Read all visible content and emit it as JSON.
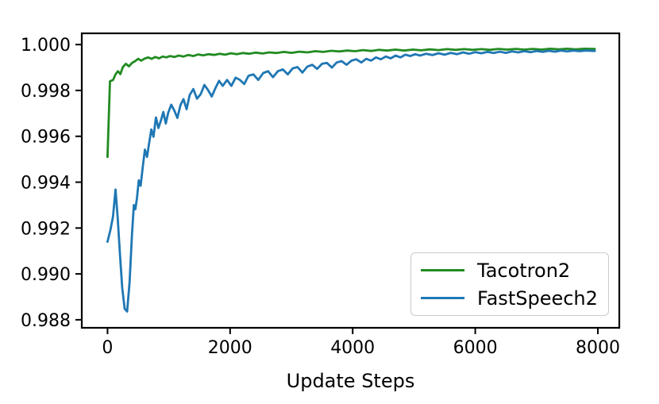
{
  "figure": {
    "background": "#ffffff"
  },
  "chart_data": {
    "type": "line",
    "title": "",
    "xlabel": "Update Steps",
    "ylabel": "",
    "grid": false,
    "legend_position": "lower right",
    "xlim": [
      -420,
      8350
    ],
    "ylim": [
      0.98765,
      1.00049
    ],
    "x_ticks": [
      0,
      2000,
      4000,
      6000,
      8000
    ],
    "x_tick_labels": [
      "0",
      "2000",
      "4000",
      "6000",
      "8000"
    ],
    "y_ticks": [
      1.0,
      0.998,
      0.996,
      0.994,
      0.992,
      0.99,
      0.988
    ],
    "y_tick_labels": [
      "1.000",
      "0.998",
      "0.996",
      "0.994",
      "0.992",
      "0.990",
      "0.988"
    ],
    "axis_color": "#000000",
    "series": [
      {
        "name": "Tacotron2",
        "color": "#228B22",
        "points": [
          [
            0,
            0.9951
          ],
          [
            40,
            0.9984
          ],
          [
            90,
            0.99846
          ],
          [
            130,
            0.9987
          ],
          [
            170,
            0.99884
          ],
          [
            210,
            0.99871
          ],
          [
            250,
            0.99902
          ],
          [
            300,
            0.99916
          ],
          [
            350,
            0.99905
          ],
          [
            400,
            0.9992
          ],
          [
            450,
            0.99928
          ],
          [
            500,
            0.99938
          ],
          [
            550,
            0.9993
          ],
          [
            600,
            0.99938
          ],
          [
            660,
            0.99944
          ],
          [
            720,
            0.99938
          ],
          [
            780,
            0.99946
          ],
          [
            840,
            0.9994
          ],
          [
            900,
            0.99948
          ],
          [
            960,
            0.99944
          ],
          [
            1020,
            0.9995
          ],
          [
            1090,
            0.99946
          ],
          [
            1160,
            0.99952
          ],
          [
            1240,
            0.99948
          ],
          [
            1320,
            0.99955
          ],
          [
            1400,
            0.9995
          ],
          [
            1480,
            0.99957
          ],
          [
            1560,
            0.99953
          ],
          [
            1650,
            0.99958
          ],
          [
            1740,
            0.99955
          ],
          [
            1830,
            0.9996
          ],
          [
            1920,
            0.99956
          ],
          [
            2010,
            0.99962
          ],
          [
            2110,
            0.99958
          ],
          [
            2210,
            0.99963
          ],
          [
            2310,
            0.9996
          ],
          [
            2420,
            0.99965
          ],
          [
            2530,
            0.99961
          ],
          [
            2640,
            0.99966
          ],
          [
            2760,
            0.99963
          ],
          [
            2880,
            0.99968
          ],
          [
            3000,
            0.99964
          ],
          [
            3130,
            0.99969
          ],
          [
            3260,
            0.99966
          ],
          [
            3390,
            0.99971
          ],
          [
            3520,
            0.99968
          ],
          [
            3650,
            0.99973
          ],
          [
            3780,
            0.9997
          ],
          [
            3910,
            0.99974
          ],
          [
            4040,
            0.99971
          ],
          [
            4170,
            0.99976
          ],
          [
            4300,
            0.99972
          ],
          [
            4430,
            0.99977
          ],
          [
            4560,
            0.99974
          ],
          [
            4700,
            0.99978
          ],
          [
            4840,
            0.99974
          ],
          [
            4980,
            0.99978
          ],
          [
            5120,
            0.99975
          ],
          [
            5260,
            0.99979
          ],
          [
            5400,
            0.99976
          ],
          [
            5540,
            0.9998
          ],
          [
            5680,
            0.99977
          ],
          [
            5820,
            0.9998
          ],
          [
            5960,
            0.99977
          ],
          [
            6100,
            0.9998
          ],
          [
            6240,
            0.99977
          ],
          [
            6380,
            0.99981
          ],
          [
            6520,
            0.99978
          ],
          [
            6660,
            0.99981
          ],
          [
            6800,
            0.99978
          ],
          [
            6940,
            0.99981
          ],
          [
            7080,
            0.99978
          ],
          [
            7220,
            0.99982
          ],
          [
            7360,
            0.99979
          ],
          [
            7500,
            0.99982
          ],
          [
            7640,
            0.99979
          ],
          [
            7780,
            0.99982
          ],
          [
            7950,
            0.99981
          ]
        ]
      },
      {
        "name": "FastSpeech2",
        "color": "#1f77b4",
        "points": [
          [
            0,
            0.9914
          ],
          [
            50,
            0.99195
          ],
          [
            90,
            0.99252
          ],
          [
            130,
            0.99368
          ],
          [
            165,
            0.99246
          ],
          [
            200,
            0.99096
          ],
          [
            240,
            0.9894
          ],
          [
            280,
            0.98848
          ],
          [
            320,
            0.98836
          ],
          [
            360,
            0.98964
          ],
          [
            400,
            0.99176
          ],
          [
            430,
            0.993
          ],
          [
            455,
            0.99282
          ],
          [
            480,
            0.9933
          ],
          [
            510,
            0.99408
          ],
          [
            540,
            0.99384
          ],
          [
            575,
            0.99466
          ],
          [
            610,
            0.99542
          ],
          [
            645,
            0.9951
          ],
          [
            680,
            0.99572
          ],
          [
            715,
            0.9963
          ],
          [
            750,
            0.99598
          ],
          [
            790,
            0.99682
          ],
          [
            830,
            0.99636
          ],
          [
            870,
            0.99668
          ],
          [
            910,
            0.99706
          ],
          [
            950,
            0.99656
          ],
          [
            990,
            0.99702
          ],
          [
            1040,
            0.99738
          ],
          [
            1090,
            0.99712
          ],
          [
            1140,
            0.9968
          ],
          [
            1190,
            0.99736
          ],
          [
            1240,
            0.99762
          ],
          [
            1290,
            0.99718
          ],
          [
            1340,
            0.9978
          ],
          [
            1400,
            0.99806
          ],
          [
            1460,
            0.99764
          ],
          [
            1520,
            0.99784
          ],
          [
            1580,
            0.99824
          ],
          [
            1640,
            0.99802
          ],
          [
            1700,
            0.99774
          ],
          [
            1760,
            0.9981
          ],
          [
            1820,
            0.99842
          ],
          [
            1880,
            0.9982
          ],
          [
            1950,
            0.99846
          ],
          [
            2020,
            0.9982
          ],
          [
            2090,
            0.99856
          ],
          [
            2160,
            0.99846
          ],
          [
            2230,
            0.99828
          ],
          [
            2300,
            0.99864
          ],
          [
            2380,
            0.9987
          ],
          [
            2460,
            0.99846
          ],
          [
            2540,
            0.99876
          ],
          [
            2620,
            0.99884
          ],
          [
            2700,
            0.99858
          ],
          [
            2780,
            0.99884
          ],
          [
            2860,
            0.99892
          ],
          [
            2940,
            0.9987
          ],
          [
            3020,
            0.99896
          ],
          [
            3100,
            0.99902
          ],
          [
            3180,
            0.99878
          ],
          [
            3260,
            0.99904
          ],
          [
            3340,
            0.99912
          ],
          [
            3420,
            0.99894
          ],
          [
            3500,
            0.99916
          ],
          [
            3580,
            0.9992
          ],
          [
            3660,
            0.999
          ],
          [
            3740,
            0.99922
          ],
          [
            3820,
            0.99928
          ],
          [
            3900,
            0.99912
          ],
          [
            3980,
            0.9993
          ],
          [
            4060,
            0.99936
          ],
          [
            4140,
            0.99922
          ],
          [
            4220,
            0.99938
          ],
          [
            4300,
            0.9993
          ],
          [
            4380,
            0.99944
          ],
          [
            4460,
            0.99936
          ],
          [
            4540,
            0.99948
          ],
          [
            4620,
            0.9994
          ],
          [
            4700,
            0.99952
          ],
          [
            4780,
            0.99944
          ],
          [
            4860,
            0.99956
          ],
          [
            4940,
            0.9995
          ],
          [
            5020,
            0.99958
          ],
          [
            5100,
            0.99952
          ],
          [
            5200,
            0.9996
          ],
          [
            5300,
            0.99954
          ],
          [
            5400,
            0.99962
          ],
          [
            5500,
            0.99956
          ],
          [
            5600,
            0.99964
          ],
          [
            5700,
            0.99958
          ],
          [
            5800,
            0.99966
          ],
          [
            5900,
            0.9996
          ],
          [
            6000,
            0.99967
          ],
          [
            6100,
            0.99962
          ],
          [
            6200,
            0.99968
          ],
          [
            6300,
            0.99963
          ],
          [
            6400,
            0.99969
          ],
          [
            6500,
            0.99964
          ],
          [
            6600,
            0.9997
          ],
          [
            6700,
            0.99966
          ],
          [
            6800,
            0.99971
          ],
          [
            6900,
            0.99967
          ],
          [
            7000,
            0.99972
          ],
          [
            7100,
            0.99968
          ],
          [
            7200,
            0.99973
          ],
          [
            7300,
            0.99969
          ],
          [
            7400,
            0.99974
          ],
          [
            7500,
            0.9997
          ],
          [
            7600,
            0.99974
          ],
          [
            7700,
            0.99971
          ],
          [
            7800,
            0.99974
          ],
          [
            7950,
            0.99972
          ]
        ]
      }
    ]
  }
}
